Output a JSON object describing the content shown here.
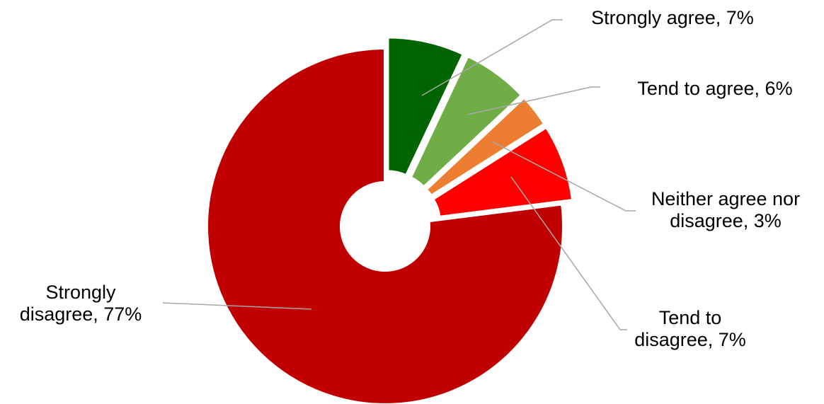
{
  "chart_data": {
    "type": "pie",
    "title": "",
    "legend": "none",
    "slices": [
      {
        "name": "Strongly agree",
        "value": 7,
        "color": "#006400",
        "label_lines": [
          "Strongly agree, 7%"
        ]
      },
      {
        "name": "Tend to agree",
        "value": 6,
        "color": "#70AD47",
        "label_lines": [
          "Tend to agree, 6%"
        ]
      },
      {
        "name": "Neither agree nor disagree",
        "value": 3,
        "color": "#ED7D31",
        "label_lines": [
          "Neither agree nor",
          "disagree, 3%"
        ]
      },
      {
        "name": "Tend to disagree",
        "value": 7,
        "color": "#FF0000",
        "label_lines": [
          "Tend to",
          "disagree, 7%"
        ]
      },
      {
        "name": "Strongly disagree",
        "value": 77,
        "color": "#C00000",
        "label_lines": [
          "Strongly",
          "disagree, 77%"
        ]
      }
    ]
  }
}
